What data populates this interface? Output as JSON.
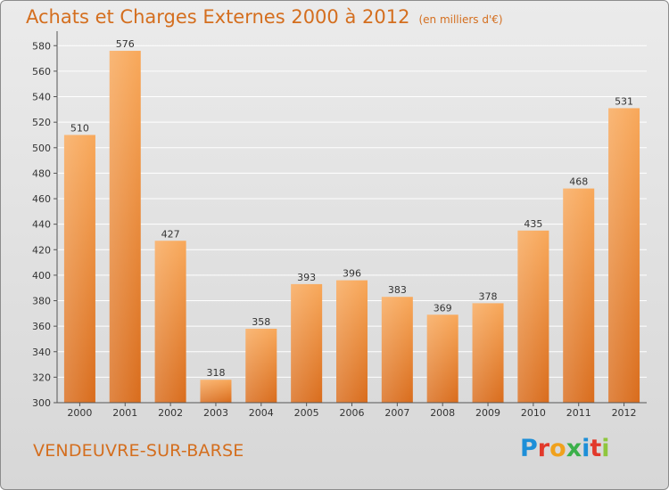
{
  "header": {
    "title": "Achats et Charges Externes 2000 à 2012",
    "unit": "(en milliers d'€)"
  },
  "footer": {
    "commune": "VENDEUVRE-SUR-BARSE",
    "logo": "Proxiti"
  },
  "colors": {
    "accent": "#d46e1e",
    "bar_top": "#f8a85a",
    "bar_bottom": "#d96c1c",
    "grid": "#ffffff",
    "background": "#e3e3e3"
  },
  "chart_data": {
    "type": "bar",
    "title": "Achats et Charges Externes 2000 à 2012",
    "subtitle": "(en milliers d'€)",
    "xlabel": "",
    "ylabel": "",
    "categories": [
      "2000",
      "2001",
      "2002",
      "2003",
      "2004",
      "2005",
      "2006",
      "2007",
      "2008",
      "2009",
      "2010",
      "2011",
      "2012"
    ],
    "values": [
      510,
      576,
      427,
      318,
      358,
      393,
      396,
      383,
      369,
      378,
      435,
      468,
      531
    ],
    "ylim": [
      300,
      590
    ],
    "yticks": [
      300,
      320,
      340,
      360,
      380,
      400,
      420,
      440,
      460,
      480,
      500,
      520,
      540,
      560,
      580
    ],
    "grid": true,
    "data_labels": true
  }
}
